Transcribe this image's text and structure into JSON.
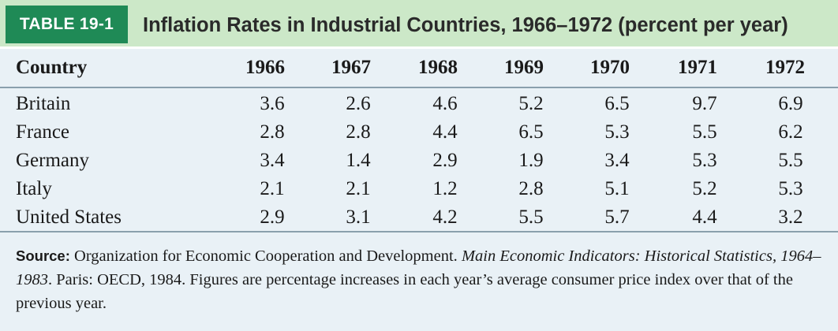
{
  "header": {
    "tag": "TABLE 19-1",
    "title": "Inflation Rates in Industrial Countries, 1966–1972 (percent per year)"
  },
  "columns": {
    "country": "Country",
    "years": [
      "1966",
      "1967",
      "1968",
      "1969",
      "1970",
      "1971",
      "1972"
    ]
  },
  "rows": [
    {
      "country": "Britain",
      "values": [
        "3.6",
        "2.6",
        "4.6",
        "5.2",
        "6.5",
        "9.7",
        "6.9"
      ]
    },
    {
      "country": "France",
      "values": [
        "2.8",
        "2.8",
        "4.4",
        "6.5",
        "5.3",
        "5.5",
        "6.2"
      ]
    },
    {
      "country": "Germany",
      "values": [
        "3.4",
        "1.4",
        "2.9",
        "1.9",
        "3.4",
        "5.3",
        "5.5"
      ]
    },
    {
      "country": "Italy",
      "values": [
        "2.1",
        "2.1",
        "1.2",
        "2.8",
        "5.1",
        "5.2",
        "5.3"
      ]
    },
    {
      "country": "United States",
      "values": [
        "2.9",
        "3.1",
        "4.2",
        "5.5",
        "5.7",
        "4.4",
        "3.2"
      ]
    }
  ],
  "source": {
    "label": "Source:",
    "text_a": " Organization for Economic Cooperation and Development. ",
    "italic_title": "Main Economic Indicators: Historical Statistics, 1964–1983",
    "text_b": ". Paris: OECD, 1984. Figures are percentage increases in each year’s average consumer price index over that of the previous year."
  },
  "colors": {
    "tag_background": "#1f8a56",
    "header_band": "#cce8c8",
    "table_background": "#e9f1f6",
    "rule": "#8aa0ad"
  }
}
